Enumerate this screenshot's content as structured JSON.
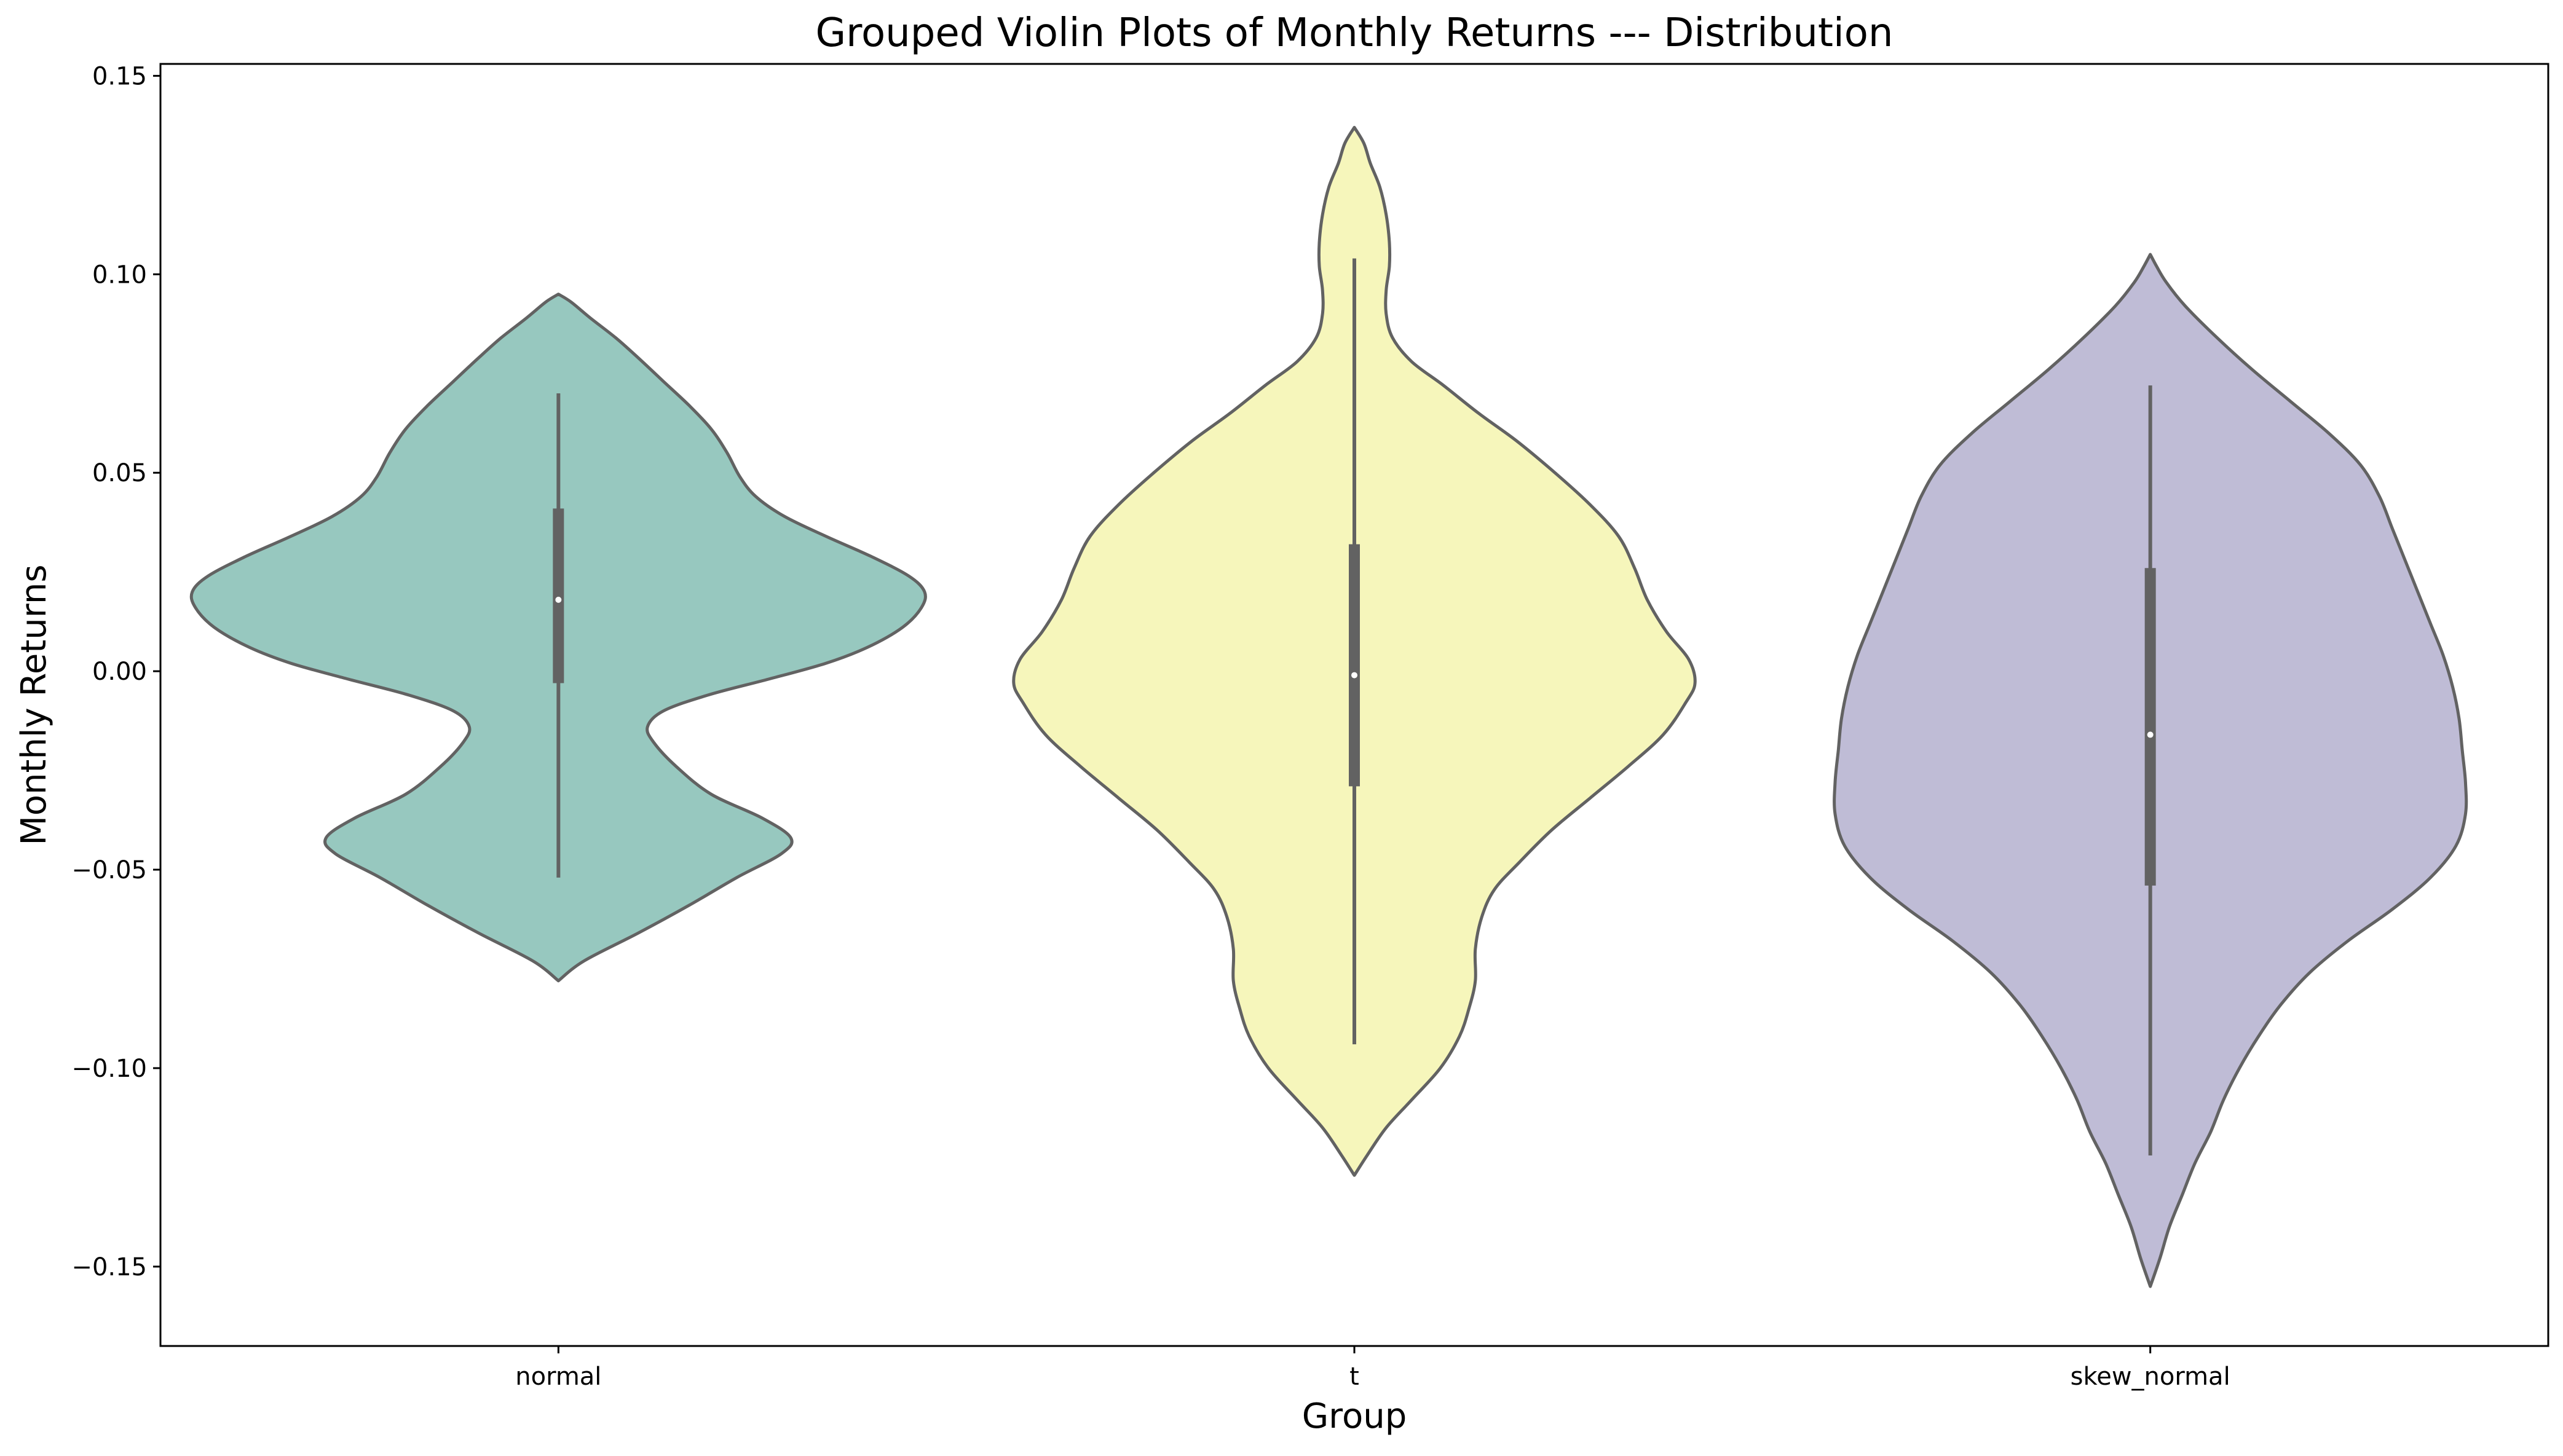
{
  "chart_data": {
    "type": "violin",
    "title": "Grouped Violin Plots of Monthly Returns --- Distribution",
    "xlabel": "Group",
    "ylabel": "Monthly Returns",
    "ylim": [
      -0.17,
      0.153
    ],
    "yticks": [
      {
        "value": 0.15,
        "label": "0.15"
      },
      {
        "value": 0.1,
        "label": "0.10"
      },
      {
        "value": 0.05,
        "label": "0.05"
      },
      {
        "value": 0.0,
        "label": "0.00"
      },
      {
        "value": -0.05,
        "label": "−0.05"
      },
      {
        "value": -0.1,
        "label": "−0.10"
      },
      {
        "value": -0.15,
        "label": "−0.15"
      }
    ],
    "categories": [
      "normal",
      "t",
      "skew_normal"
    ],
    "grid": false,
    "violins": [
      {
        "category": "normal",
        "color": "#97c8bf",
        "edge_color": "#626262",
        "ymin": -0.078,
        "ymax": 0.095,
        "median": 0.018,
        "q1": -0.003,
        "q3": 0.041,
        "whisker_low": -0.052,
        "whisker_high": 0.07,
        "profile": [
          [
            -0.078,
            0.0
          ],
          [
            -0.073,
            0.08
          ],
          [
            -0.066,
            0.25
          ],
          [
            -0.059,
            0.41
          ],
          [
            -0.052,
            0.56
          ],
          [
            -0.046,
            0.7
          ],
          [
            -0.042,
            0.73
          ],
          [
            -0.037,
            0.64
          ],
          [
            -0.031,
            0.48
          ],
          [
            -0.024,
            0.37
          ],
          [
            -0.018,
            0.3
          ],
          [
            -0.014,
            0.28
          ],
          [
            -0.01,
            0.33
          ],
          [
            -0.006,
            0.47
          ],
          [
            -0.002,
            0.66
          ],
          [
            0.002,
            0.84
          ],
          [
            0.006,
            0.97
          ],
          [
            0.011,
            1.08
          ],
          [
            0.016,
            1.14
          ],
          [
            0.02,
            1.15
          ],
          [
            0.024,
            1.1
          ],
          [
            0.029,
            0.98
          ],
          [
            0.034,
            0.84
          ],
          [
            0.039,
            0.71
          ],
          [
            0.044,
            0.62
          ],
          [
            0.049,
            0.57
          ],
          [
            0.055,
            0.53
          ],
          [
            0.061,
            0.48
          ],
          [
            0.067,
            0.41
          ],
          [
            0.073,
            0.33
          ],
          [
            0.079,
            0.25
          ],
          [
            0.084,
            0.18
          ],
          [
            0.089,
            0.1
          ],
          [
            0.093,
            0.04
          ],
          [
            0.095,
            0.0
          ]
        ]
      },
      {
        "category": "t",
        "color": "#f6f6bb",
        "edge_color": "#626262",
        "ymin": -0.127,
        "ymax": 0.137,
        "median": -0.001,
        "q1": -0.029,
        "q3": 0.032,
        "whisker_low": -0.094,
        "whisker_high": 0.104,
        "profile": [
          [
            -0.127,
            0.0
          ],
          [
            -0.122,
            0.04
          ],
          [
            -0.115,
            0.1
          ],
          [
            -0.108,
            0.18
          ],
          [
            -0.1,
            0.27
          ],
          [
            -0.092,
            0.33
          ],
          [
            -0.085,
            0.36
          ],
          [
            -0.078,
            0.38
          ],
          [
            -0.07,
            0.38
          ],
          [
            -0.062,
            0.4
          ],
          [
            -0.055,
            0.44
          ],
          [
            -0.048,
            0.52
          ],
          [
            -0.04,
            0.62
          ],
          [
            -0.032,
            0.74
          ],
          [
            -0.024,
            0.86
          ],
          [
            -0.016,
            0.97
          ],
          [
            -0.008,
            1.04
          ],
          [
            -0.003,
            1.07
          ],
          [
            0.003,
            1.05
          ],
          [
            0.01,
            0.98
          ],
          [
            0.018,
            0.92
          ],
          [
            0.026,
            0.88
          ],
          [
            0.034,
            0.83
          ],
          [
            0.042,
            0.74
          ],
          [
            0.05,
            0.63
          ],
          [
            0.058,
            0.51
          ],
          [
            0.065,
            0.39
          ],
          [
            0.072,
            0.28
          ],
          [
            0.078,
            0.18
          ],
          [
            0.084,
            0.12
          ],
          [
            0.09,
            0.1
          ],
          [
            0.096,
            0.1
          ],
          [
            0.102,
            0.11
          ],
          [
            0.108,
            0.11
          ],
          [
            0.115,
            0.1
          ],
          [
            0.122,
            0.08
          ],
          [
            0.128,
            0.05
          ],
          [
            0.133,
            0.03
          ],
          [
            0.137,
            0.0
          ]
        ]
      },
      {
        "category": "skew_normal",
        "color": "#bfbcd6",
        "edge_color": "#626262",
        "ymin": -0.155,
        "ymax": 0.105,
        "median": -0.016,
        "q1": -0.054,
        "q3": 0.026,
        "whisker_low": -0.122,
        "whisker_high": 0.072,
        "profile": [
          [
            -0.155,
            0.0
          ],
          [
            -0.148,
            0.03
          ],
          [
            -0.14,
            0.06
          ],
          [
            -0.132,
            0.1
          ],
          [
            -0.124,
            0.14
          ],
          [
            -0.116,
            0.19
          ],
          [
            -0.108,
            0.23
          ],
          [
            -0.1,
            0.28
          ],
          [
            -0.092,
            0.34
          ],
          [
            -0.084,
            0.41
          ],
          [
            -0.076,
            0.5
          ],
          [
            -0.068,
            0.62
          ],
          [
            -0.06,
            0.76
          ],
          [
            -0.052,
            0.88
          ],
          [
            -0.044,
            0.96
          ],
          [
            -0.036,
            0.99
          ],
          [
            -0.028,
            0.99
          ],
          [
            -0.02,
            0.98
          ],
          [
            -0.012,
            0.97
          ],
          [
            -0.004,
            0.95
          ],
          [
            0.004,
            0.92
          ],
          [
            0.012,
            0.88
          ],
          [
            0.02,
            0.84
          ],
          [
            0.028,
            0.8
          ],
          [
            0.036,
            0.76
          ],
          [
            0.044,
            0.72
          ],
          [
            0.052,
            0.66
          ],
          [
            0.06,
            0.56
          ],
          [
            0.068,
            0.44
          ],
          [
            0.076,
            0.32
          ],
          [
            0.084,
            0.21
          ],
          [
            0.092,
            0.11
          ],
          [
            0.098,
            0.05
          ],
          [
            0.102,
            0.02
          ],
          [
            0.105,
            0.0
          ]
        ]
      }
    ]
  }
}
